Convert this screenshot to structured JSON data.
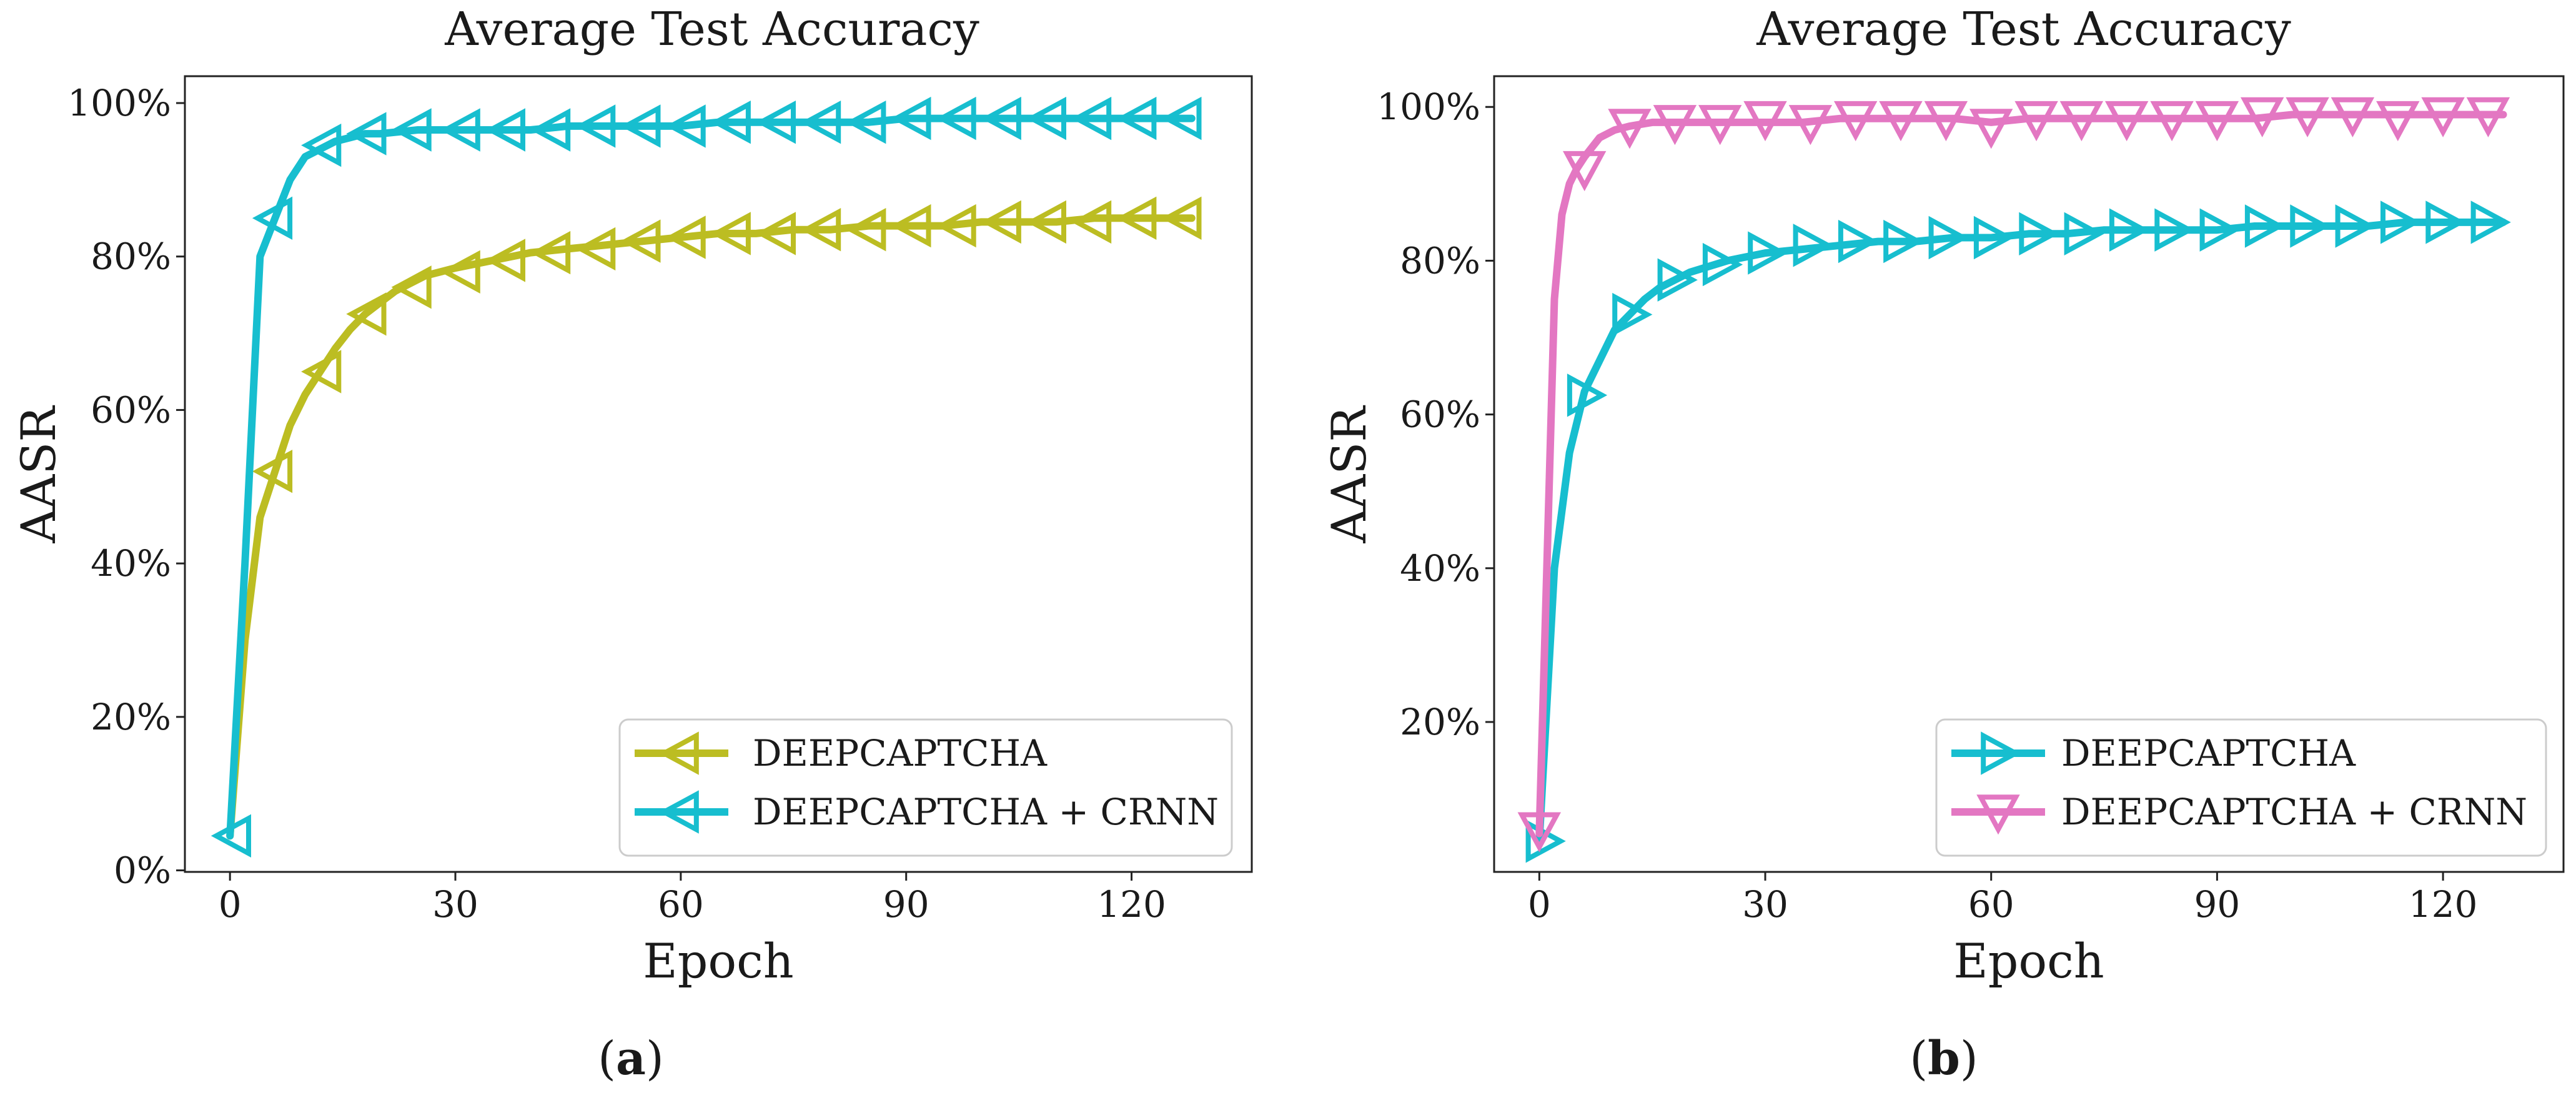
{
  "chart_data": [
    {
      "id": "a",
      "type": "line",
      "title": "Average Test Accuracy",
      "xlabel": "Epoch",
      "ylabel": "AASR",
      "caption_letter": "a",
      "xlim": [
        -6,
        136
      ],
      "ylim": [
        -0.2,
        103.5
      ],
      "xticks": [
        0,
        30,
        60,
        90,
        120
      ],
      "xtick_labels": [
        "0",
        "30",
        "60",
        "90",
        "120"
      ],
      "yticks": [
        0,
        20,
        40,
        60,
        80,
        100
      ],
      "ytick_labels": [
        "0%",
        "20%",
        "40%",
        "60%",
        "80%",
        "100%"
      ],
      "grid": false,
      "legend_position": "lower-right",
      "series": [
        {
          "name": "DEEPCAPTCHA",
          "color": "#bcbd22",
          "marker": "triangle-left",
          "x": [
            0,
            2,
            4,
            6,
            8,
            10,
            12,
            14,
            16,
            18,
            20,
            22,
            24,
            26,
            28,
            30,
            35,
            40,
            45,
            50,
            55,
            60,
            65,
            70,
            75,
            80,
            85,
            90,
            95,
            100,
            105,
            110,
            115,
            120,
            125,
            128
          ],
          "y": [
            4.5,
            30,
            46,
            52,
            58,
            62,
            65,
            68,
            70.5,
            72.5,
            74,
            75.5,
            76.5,
            77.5,
            78,
            78.5,
            79.5,
            80.5,
            81,
            81.5,
            82,
            82.5,
            83,
            83,
            83.5,
            83.5,
            84,
            84,
            84,
            84.5,
            84.5,
            84.5,
            85,
            85,
            85,
            85
          ],
          "marker_x": [
            6,
            12.5,
            18.5,
            24.5,
            31,
            37,
            43,
            49,
            55,
            61,
            67,
            73,
            79,
            85,
            91,
            97,
            103,
            109,
            115,
            121,
            127
          ],
          "marker_y": [
            52,
            65,
            72.5,
            76,
            78,
            79.5,
            80.5,
            81,
            82,
            82.5,
            83,
            83,
            83.5,
            83.5,
            84,
            84,
            84.5,
            84.5,
            84.5,
            85,
            85
          ]
        },
        {
          "name": "DEEPCAPTCHA + CRNN",
          "color": "#17becf",
          "marker": "triangle-left",
          "x": [
            0,
            2,
            4,
            6,
            8,
            10,
            12,
            14,
            16,
            18,
            20,
            25,
            30,
            35,
            40,
            45,
            50,
            55,
            60,
            65,
            70,
            75,
            80,
            85,
            90,
            95,
            100,
            105,
            110,
            115,
            120,
            125,
            128
          ],
          "y": [
            4.5,
            40,
            80,
            85,
            90,
            93,
            94,
            95,
            95.5,
            96,
            96,
            96.5,
            96.5,
            96.5,
            96.5,
            97,
            97,
            97,
            97,
            97.5,
            97.5,
            97.5,
            97.5,
            97.5,
            98,
            98,
            98,
            98,
            98,
            98,
            98,
            98,
            98
          ],
          "marker_x": [
            0.5,
            6,
            12.5,
            18.5,
            24.5,
            31,
            37,
            43,
            49,
            55,
            61,
            67,
            73,
            79,
            85,
            91,
            97,
            103,
            109,
            115,
            121,
            127
          ],
          "marker_y": [
            4.5,
            85,
            94.5,
            96,
            96.5,
            96.5,
            96.5,
            96.5,
            97,
            97,
            97,
            97.5,
            97.5,
            97.5,
            97.5,
            98,
            98,
            98,
            98,
            98,
            98,
            98
          ]
        }
      ]
    },
    {
      "id": "b",
      "type": "line",
      "title": "Average Test Accuracy",
      "xlabel": "Epoch",
      "ylabel": "AASR",
      "caption_letter": "b",
      "xlim": [
        -6,
        136
      ],
      "ylim": [
        0.5,
        104
      ],
      "xticks": [
        0,
        30,
        60,
        90,
        120
      ],
      "xtick_labels": [
        "0",
        "30",
        "60",
        "90",
        "120"
      ],
      "yticks": [
        20,
        40,
        60,
        80,
        100
      ],
      "ytick_labels": [
        "20%",
        "40%",
        "60%",
        "80%",
        "100%"
      ],
      "grid": false,
      "legend_position": "lower-right",
      "series": [
        {
          "name": "DEEPCAPTCHA",
          "color": "#17becf",
          "marker": "triangle-right",
          "x": [
            0,
            2,
            4,
            6,
            8,
            10,
            12,
            14,
            16,
            18,
            20,
            25,
            30,
            35,
            40,
            45,
            50,
            55,
            60,
            65,
            70,
            75,
            80,
            85,
            90,
            95,
            100,
            105,
            110,
            115,
            120,
            125,
            128
          ],
          "y": [
            4.5,
            40,
            55,
            63,
            67,
            71,
            73,
            75,
            76.5,
            77.5,
            78.5,
            80,
            81,
            81.5,
            82,
            82.5,
            82.5,
            83,
            83,
            83.5,
            83.5,
            84,
            84,
            84,
            84,
            84.5,
            84.5,
            84.5,
            84.5,
            85,
            85,
            85,
            85
          ],
          "marker_x": [
            0.5,
            6,
            12,
            18,
            24,
            30,
            36,
            42,
            48,
            54,
            60,
            66,
            72,
            78,
            84,
            90,
            96,
            102,
            108,
            114,
            120,
            126
          ],
          "marker_y": [
            4.5,
            62.5,
            73,
            77.5,
            79.5,
            81,
            82,
            82.5,
            82.5,
            83,
            83,
            83.5,
            83.5,
            84,
            84,
            84,
            84.5,
            84.5,
            84.5,
            85,
            85,
            85
          ]
        },
        {
          "name": "DEEPCAPTCHA + CRNN",
          "color": "#e377c2",
          "marker": "triangle-down",
          "x": [
            0,
            1,
            2,
            3,
            4,
            5,
            6,
            8,
            10,
            12,
            15,
            20,
            25,
            30,
            35,
            40,
            45,
            50,
            55,
            60,
            65,
            70,
            75,
            80,
            85,
            90,
            95,
            100,
            105,
            110,
            115,
            120,
            125,
            128
          ],
          "y": [
            5.5,
            40,
            75,
            86,
            90,
            92,
            93.5,
            96,
            97,
            97.5,
            98,
            98,
            98,
            98,
            98,
            98.5,
            98.5,
            98.5,
            98.5,
            98,
            98.5,
            98.5,
            98.5,
            98.5,
            98.5,
            98.5,
            98.5,
            99,
            99,
            99,
            99,
            99,
            99,
            99
          ],
          "marker_x": [
            0,
            6,
            12,
            18,
            24,
            30,
            36,
            42,
            48,
            54,
            60,
            66,
            72,
            78,
            84,
            90,
            96,
            102,
            108,
            114,
            120,
            126
          ],
          "marker_y": [
            6,
            92,
            97.5,
            98,
            98,
            98.5,
            98,
            98.5,
            98.5,
            98.5,
            97.5,
            98.5,
            98.5,
            98.5,
            98.5,
            98.5,
            99,
            99,
            99,
            98.5,
            99,
            99
          ]
        }
      ]
    }
  ]
}
